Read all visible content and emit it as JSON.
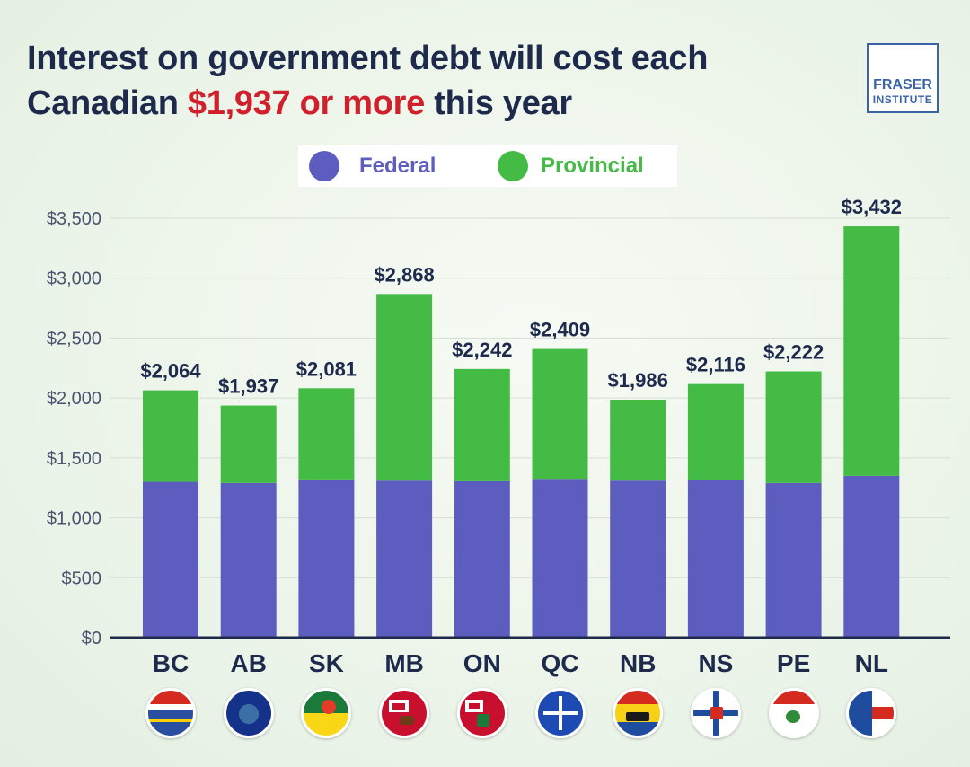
{
  "title": {
    "line1": "Interest on government debt will cost each",
    "line2_pre": "Canadian ",
    "line2_accent": "$1,937 or more",
    "line2_post": " this year"
  },
  "logo": {
    "line1": "FRASER",
    "line2": "INSTITUTE"
  },
  "colors": {
    "federal": "#5d5dbf",
    "provincial": "#44bb44",
    "title": "#1d2a4c",
    "accent": "#d0202b"
  },
  "chart_data": {
    "type": "bar",
    "stacked": true,
    "categories": [
      "BC",
      "AB",
      "SK",
      "MB",
      "ON",
      "QC",
      "NB",
      "NS",
      "PE",
      "NL"
    ],
    "series": [
      {
        "name": "Federal",
        "color": "#5d5dbf",
        "values": [
          1300,
          1290,
          1320,
          1310,
          1305,
          1325,
          1310,
          1315,
          1290,
          1350
        ]
      },
      {
        "name": "Provincial",
        "color": "#44bb44",
        "values": [
          764,
          647,
          761,
          1558,
          937,
          1084,
          676,
          801,
          932,
          2082
        ]
      }
    ],
    "totals": [
      2064,
      1937,
      2081,
      2868,
      2242,
      2409,
      1986,
      2116,
      2222,
      3432
    ],
    "total_labels": [
      "$2,064",
      "$1,937",
      "$2,081",
      "$2,868",
      "$2,242",
      "$2,409",
      "$1,986",
      "$2,116",
      "$2,222",
      "$3,432"
    ],
    "ylim": [
      0,
      3500
    ],
    "yticks": [
      0,
      500,
      1000,
      1500,
      2000,
      2500,
      3000,
      3500
    ],
    "ytick_labels": [
      "$0",
      "$500",
      "$1,000",
      "$1,500",
      "$2,000",
      "$2,500",
      "$3,000",
      "$3,500"
    ],
    "grid": true,
    "legend_position": "top-center"
  },
  "flags": [
    "bc-flag-icon",
    "ab-flag-icon",
    "sk-flag-icon",
    "mb-flag-icon",
    "on-flag-icon",
    "qc-flag-icon",
    "nb-flag-icon",
    "ns-flag-icon",
    "pe-flag-icon",
    "nl-flag-icon"
  ]
}
